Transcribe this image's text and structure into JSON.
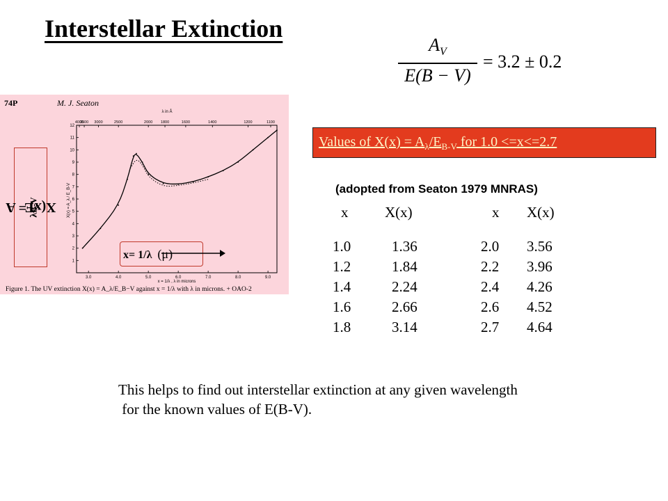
{
  "title": "Interstellar Extinction",
  "equation": {
    "numerator": "A",
    "numerator_sub": "V",
    "denominator": "E(B − V)",
    "rhs": "= 3.2 ± 0.2"
  },
  "figure": {
    "page_number": "74P",
    "author": "M. J. Seaton",
    "top_axis_label": "λ in Å",
    "top_ticks": [
      "4000",
      "3500",
      "3000",
      "2500",
      "2000",
      "1800",
      "1600",
      "1400",
      "1200",
      "1100"
    ],
    "inner_ylabel": "X(x) = A_λ / E_B-V",
    "inner_xlabel": "x = 1/λ , λ in microns",
    "y_ticks": [
      "1",
      "2",
      "3",
      "4",
      "5",
      "6",
      "7",
      "8",
      "9",
      "10",
      "11",
      "12"
    ],
    "x_ticks": [
      "3.0",
      "4.0",
      "5.0",
      "6.0",
      "7.0",
      "8.0",
      "9.0"
    ],
    "caption": "Figure 1. The UV extinction X(x) = A_λ/E_B−V against x = 1/λ with λ in microns. + OAO-2",
    "ylabel_main": "X(x) = A",
    "ylabel_sub1": "λ",
    "ylabel_mid": "/E",
    "ylabel_sub2": "B-V",
    "xlabel_main": "x= 1/λ",
    "xlabel_unit": "(μ)"
  },
  "chart_data": {
    "type": "line",
    "title": "",
    "xlabel": "x = 1/λ , λ in microns",
    "ylabel": "X(x) = A_λ / E_B-V",
    "xlim": [
      2.6,
      9.3
    ],
    "ylim": [
      0,
      12
    ],
    "series": [
      {
        "x": [
          2.8,
          3.4,
          4.0,
          4.3,
          4.5,
          4.6,
          4.8,
          5.0,
          5.5,
          6.0,
          6.5,
          7.0,
          7.5,
          8.0,
          8.5,
          9.0,
          9.3
        ],
        "y": [
          2.0,
          3.6,
          5.5,
          7.6,
          9.5,
          9.7,
          9.0,
          8.0,
          7.25,
          7.2,
          7.4,
          7.8,
          8.3,
          9.0,
          10.0,
          11.0,
          11.6
        ]
      },
      {
        "x": [
          4.4,
          4.6,
          4.8,
          5.0,
          5.5,
          6.0,
          6.5,
          7.0
        ],
        "y": [
          8.5,
          9.3,
          8.8,
          7.8,
          7.0,
          7.1,
          7.3,
          7.6
        ]
      }
    ]
  },
  "values_header": {
    "prefix": "Values of X(x) = A",
    "sub1": "λ",
    "mid": "/E",
    "sub2": "B-V",
    "suffix": " for 1.0 <=x<=2.7"
  },
  "source_note": "(adopted from Seaton 1979 MNRAS)",
  "table": {
    "headers": [
      "x",
      "X(x)",
      "x",
      "X(x)"
    ],
    "rows": [
      [
        "1.0",
        "1.36",
        "2.0",
        "3.56"
      ],
      [
        "1.2",
        "1.84",
        "2.2",
        "3.96"
      ],
      [
        "1.4",
        "2.24",
        "2.4",
        "4.26"
      ],
      [
        "1.6",
        "2.66",
        "2.6",
        "4.52"
      ],
      [
        "1.8",
        "3.14",
        "2.7",
        "4.64"
      ]
    ]
  },
  "note_lines": [
    "This helps to find out interstellar extinction at any given wavelength",
    " for the known values of E(B-V)."
  ]
}
